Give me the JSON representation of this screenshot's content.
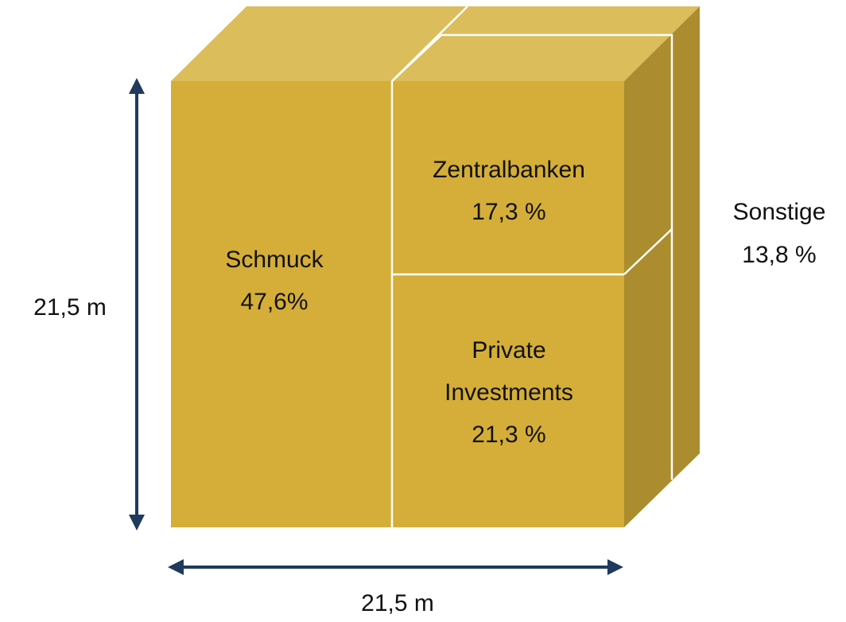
{
  "segments": [
    {
      "name": [
        "Schmuck"
      ],
      "share": "47,6%"
    },
    {
      "name": [
        "Zentralbanken"
      ],
      "share": "17,3 %"
    },
    {
      "name": [
        "Private",
        "Investments"
      ],
      "share": "21,3 %"
    },
    {
      "name": [
        "Sonstige"
      ],
      "share": "13,8 %"
    }
  ],
  "height_label": "21,5 m",
  "width_label": "21,5 m"
}
